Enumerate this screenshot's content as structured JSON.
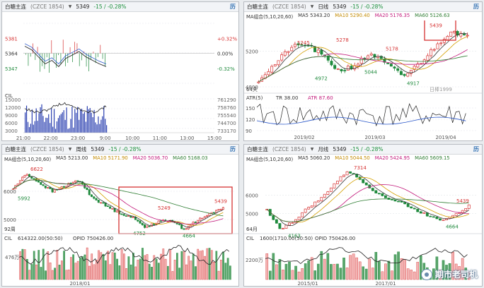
{
  "header": {
    "title": "白糖主连",
    "code": "(CZCE 1854)",
    "price": "5349",
    "change": "-15 / -0.28%",
    "calendar": "历"
  },
  "intraday": {
    "price_levels": [
      "5381",
      "5364",
      "5347"
    ],
    "pct_levels": [
      "+0.32%",
      "0.00%",
      "-0.32%"
    ],
    "vol_levels": [
      "15000",
      "12000",
      "9000",
      "6000",
      "3000"
    ],
    "oi_levels": [
      "761290",
      "758760",
      "755540",
      "744700",
      "733170"
    ],
    "times": [
      "21:00",
      "22:00",
      "23:00",
      "9:00",
      "10:00",
      "11:00",
      "13:00",
      "15:00"
    ],
    "cil": "CIL"
  },
  "daily": {
    "period": "日线",
    "ma_label": "MA组合(5,10,20,60)",
    "ma5": "MA5 5343.20",
    "ma10": "MA10 5290.40",
    "ma20": "MA20 5176.35",
    "ma60": "MA60 5126.63",
    "y_labels": [
      "5200",
      "4800"
    ],
    "annotations": [
      "5245",
      "5278",
      "5439",
      "4972",
      "5044",
      "5178",
      "4917"
    ],
    "bars_label": "64天",
    "atr_label": "ATR(5)",
    "tr": "TR 38.00",
    "atr": "ATR 87.60",
    "atr_y": [
      "150",
      "120",
      "90"
    ],
    "dates": [
      "2019/02",
      "2019/03",
      "2019/04"
    ],
    "watermark": "日棒1999"
  },
  "weekly": {
    "period": "周线",
    "ma_label": "MA组合(5,10,20,60)",
    "ma5": "MA5 5213.00",
    "ma10": "MA10 5171.90",
    "ma20": "MA20 5036.70",
    "ma60": "MA60 5168.03",
    "y_labels": [
      "6000",
      "5000"
    ],
    "annotations": [
      "6622",
      "5992",
      "5249",
      "4752",
      "4664",
      "5439"
    ],
    "bars_label": "92周",
    "cil_label": "CIL",
    "cil_value": "614322.00(50:50)",
    "opid": "OPID 750426.00",
    "vol_label": "476万",
    "dates": [
      "2018/01"
    ]
  },
  "monthly": {
    "period": "月线",
    "ma_label": "MA组合(5,10,20,60)",
    "ma5": "MA5 5060.20",
    "ma10": "MA10 5044.50",
    "ma20": "MA20 5424.95",
    "ma60": "MA60 5609.15",
    "y_labels": [
      "6000",
      "5000"
    ],
    "annotations": [
      "7314",
      "5439",
      "4664",
      "4163"
    ],
    "bars_label": "64月",
    "cil_label": "CIL",
    "cil_value": "1600(1710.00(50:50)",
    "opid": "OPID 750426.00",
    "vol_label": "2200万",
    "dates": [
      "2015/01",
      "2017/01"
    ]
  },
  "watermark": {
    "text": "期市老司机"
  },
  "chart_data": [
    {
      "type": "line",
      "title": "白糖主连 分时",
      "y_range": [
        5330,
        5398
      ],
      "prev_close": 5364,
      "series": [
        {
          "name": "price",
          "values": [
            5372,
            5368,
            5360,
            5352,
            5356,
            5349,
            5358,
            5362,
            5366,
            5360,
            5356,
            5352,
            5349
          ]
        }
      ]
    },
    {
      "type": "candlestick",
      "title": "白糖主连 日线",
      "y_range": [
        4800,
        5500
      ],
      "highlights": {
        "high": 5439,
        "lows": [
          4972,
          5044,
          4917
        ],
        "highs": [
          5245,
          5278,
          5178
        ]
      }
    },
    {
      "type": "candlestick",
      "title": "白糖主连 周线",
      "y_range": [
        4500,
        6800
      ],
      "highlights": {
        "high": 6622,
        "lows": [
          5992,
          4752,
          4664
        ],
        "highs": [
          5249,
          5439
        ]
      }
    },
    {
      "type": "candlestick",
      "title": "白糖主连 月线",
      "y_range": [
        4000,
        7500
      ],
      "highlights": {
        "high": 7314,
        "lows": [
          4163,
          4664
        ],
        "highs": [
          5439
        ]
      }
    }
  ]
}
